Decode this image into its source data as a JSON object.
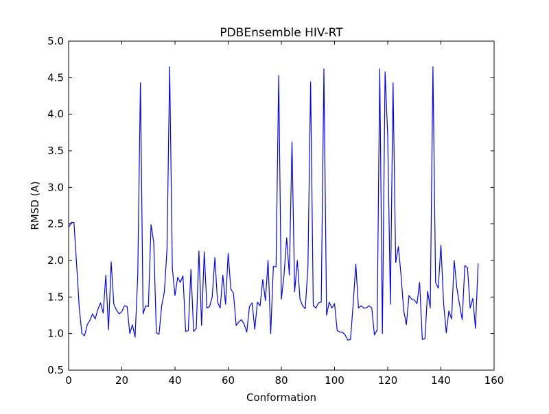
{
  "chart_data": {
    "type": "line",
    "title": "PDBEnsemble HIV-RT",
    "xlabel": "Conformation",
    "ylabel": "RMSD (A)",
    "xlim": [
      0,
      160
    ],
    "ylim": [
      0.5,
      5.0
    ],
    "x_ticks": [
      "0",
      "20",
      "40",
      "60",
      "80",
      "100",
      "120",
      "140",
      "160"
    ],
    "y_ticks": [
      "0.5",
      "1.0",
      "1.5",
      "2.0",
      "2.5",
      "3.0",
      "3.5",
      "4.0",
      "4.5",
      "5.0"
    ],
    "grid": false,
    "line_color": "#0000ff",
    "series": [
      {
        "x": [
          0,
          1,
          2,
          3,
          4,
          5,
          6,
          7,
          8,
          9,
          10,
          11,
          12,
          13,
          14,
          15,
          16,
          17,
          18,
          19,
          20,
          21,
          22,
          23,
          24,
          25,
          26,
          27,
          28,
          29,
          30,
          31,
          32,
          33,
          34,
          35,
          36,
          37,
          38,
          39,
          40,
          41,
          42,
          43,
          44,
          45,
          46,
          47,
          48,
          49,
          50,
          51,
          52,
          53,
          54,
          55,
          56,
          57,
          58,
          59,
          60,
          61,
          62,
          63,
          64,
          65,
          66,
          67,
          68,
          69,
          70,
          71,
          72,
          73,
          74,
          75,
          76,
          77,
          78,
          79,
          80,
          81,
          82,
          83,
          84,
          85,
          86,
          87,
          88,
          89,
          90,
          91,
          92,
          93,
          94,
          95,
          96,
          97,
          98,
          99,
          100,
          101,
          102,
          103,
          104,
          105,
          106,
          107,
          108,
          109,
          110,
          111,
          112,
          113,
          114,
          115,
          116,
          117,
          118,
          119,
          120,
          121,
          122,
          123,
          124,
          125,
          126,
          127,
          128,
          129,
          130,
          131,
          132,
          133,
          134,
          135,
          136,
          137,
          138,
          139,
          140,
          141,
          142,
          143,
          144,
          145,
          146,
          147,
          148,
          149,
          150,
          151,
          152,
          153,
          154
        ],
        "y": [
          2.45,
          2.52,
          2.52,
          1.95,
          1.35,
          1.0,
          0.97,
          1.12,
          1.18,
          1.27,
          1.2,
          1.33,
          1.42,
          1.28,
          1.8,
          1.05,
          1.98,
          1.4,
          1.32,
          1.27,
          1.3,
          1.38,
          1.37,
          1.0,
          1.12,
          0.95,
          1.8,
          4.43,
          1.27,
          1.38,
          1.37,
          2.49,
          2.25,
          1.01,
          0.99,
          1.38,
          1.57,
          2.15,
          4.65,
          1.9,
          1.52,
          1.77,
          1.7,
          1.79,
          1.03,
          1.04,
          1.88,
          1.03,
          1.07,
          2.13,
          1.11,
          2.12,
          1.35,
          1.37,
          1.5,
          2.04,
          1.43,
          1.35,
          1.8,
          1.4,
          2.1,
          1.61,
          1.55,
          1.11,
          1.16,
          1.19,
          1.13,
          1.02,
          1.37,
          1.42,
          1.06,
          1.43,
          1.38,
          1.74,
          1.45,
          2.0,
          1.0,
          1.92,
          1.91,
          4.53,
          1.47,
          1.8,
          2.31,
          1.8,
          3.62,
          1.57,
          2.0,
          1.47,
          1.38,
          1.34,
          1.92,
          4.44,
          1.38,
          1.35,
          1.42,
          1.43,
          4.62,
          1.25,
          1.43,
          1.35,
          1.41,
          1.04,
          1.02,
          1.02,
          0.98,
          0.91,
          0.92,
          1.4,
          1.95,
          1.35,
          1.38,
          1.35,
          1.35,
          1.38,
          1.35,
          0.98,
          1.05,
          4.62,
          1.0,
          4.58,
          3.7,
          1.4,
          4.43,
          1.97,
          2.19,
          1.8,
          1.32,
          1.12,
          1.52,
          1.47,
          1.46,
          1.41,
          1.7,
          0.92,
          0.93,
          1.58,
          1.35,
          4.65,
          1.7,
          1.62,
          2.21,
          1.42,
          1.01,
          1.31,
          1.2,
          2.0,
          1.62,
          1.4,
          1.19,
          1.93,
          1.9,
          1.35,
          1.48,
          1.07,
          1.96
        ]
      }
    ]
  }
}
